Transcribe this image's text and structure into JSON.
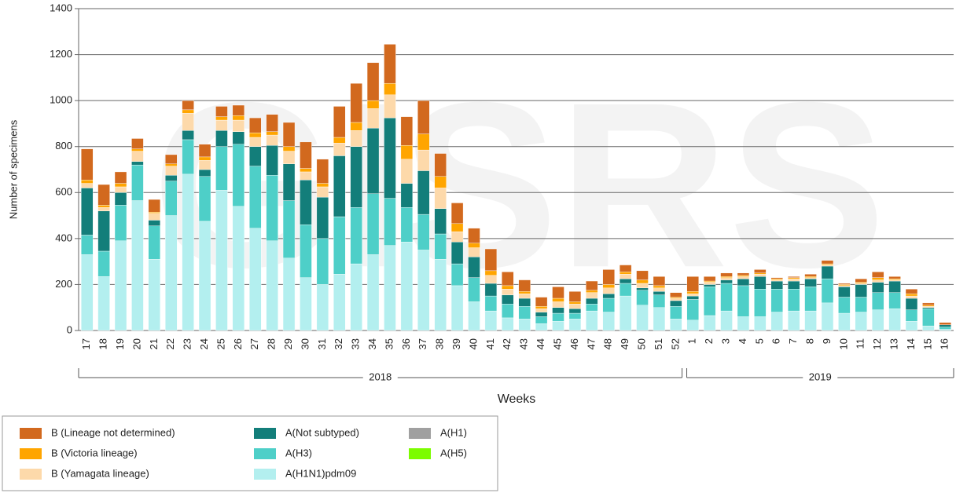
{
  "chart_data": {
    "type": "stacked_bar",
    "watermark": "GISRS",
    "y_axis_title": "Number of specimens",
    "x_axis_title": "Weeks",
    "x_group_labels": [
      "2018",
      "2019"
    ],
    "categories": [
      "17",
      "18",
      "19",
      "20",
      "21",
      "22",
      "23",
      "24",
      "25",
      "26",
      "27",
      "28",
      "29",
      "30",
      "31",
      "32",
      "33",
      "34",
      "35",
      "36",
      "37",
      "38",
      "39",
      "40",
      "41",
      "42",
      "43",
      "44",
      "45",
      "46",
      "47",
      "48",
      "49",
      "50",
      "51",
      "52",
      "1",
      "2",
      "3",
      "4",
      "5",
      "6",
      "7",
      "8",
      "9",
      "10",
      "11",
      "12",
      "13",
      "14",
      "15",
      "16"
    ],
    "ylim": [
      0,
      1400
    ],
    "yticks": [
      0,
      200,
      400,
      600,
      800,
      1000,
      1200,
      1400
    ],
    "grid": true,
    "series": [
      {
        "name": "A(H1N1)pdm09",
        "color": "#b3efef",
        "values": [
          330,
          235,
          390,
          565,
          310,
          500,
          680,
          475,
          610,
          540,
          445,
          390,
          315,
          230,
          200,
          245,
          290,
          330,
          370,
          385,
          350,
          310,
          195,
          125,
          85,
          55,
          50,
          30,
          40,
          50,
          85,
          80,
          150,
          110,
          100,
          50,
          45,
          65,
          85,
          60,
          60,
          80,
          85,
          85,
          120,
          75,
          80,
          90,
          95,
          40,
          20,
          5
        ]
      },
      {
        "name": "A(H3)",
        "color": "#4ecfc8",
        "values": [
          85,
          110,
          155,
          155,
          145,
          150,
          150,
          195,
          190,
          270,
          270,
          285,
          250,
          230,
          200,
          250,
          245,
          265,
          205,
          150,
          155,
          110,
          95,
          105,
          65,
          60,
          55,
          30,
          35,
          25,
          30,
          60,
          55,
          65,
          55,
          55,
          90,
          125,
          120,
          135,
          120,
          100,
          95,
          105,
          105,
          70,
          65,
          75,
          70,
          50,
          75,
          10
        ]
      },
      {
        "name": "A(Not subtyped)",
        "color": "#137e7a",
        "values": [
          205,
          175,
          55,
          15,
          25,
          25,
          40,
          30,
          70,
          55,
          85,
          130,
          160,
          195,
          180,
          265,
          265,
          285,
          350,
          105,
          190,
          110,
          95,
          90,
          55,
          40,
          35,
          20,
          25,
          20,
          25,
          20,
          20,
          10,
          15,
          25,
          15,
          10,
          15,
          30,
          55,
          35,
          35,
          35,
          55,
          45,
          55,
          45,
          50,
          50,
          5,
          10
        ]
      },
      {
        "name": "A(H1)",
        "color": "#a0a0a0",
        "values": [
          0,
          0,
          0,
          0,
          0,
          0,
          0,
          0,
          0,
          0,
          0,
          0,
          0,
          0,
          0,
          0,
          0,
          0,
          0,
          0,
          0,
          0,
          0,
          0,
          0,
          0,
          0,
          0,
          0,
          0,
          0,
          0,
          0,
          0,
          0,
          0,
          0,
          0,
          0,
          0,
          0,
          0,
          0,
          0,
          0,
          0,
          0,
          0,
          0,
          0,
          0,
          0
        ]
      },
      {
        "name": "A(H5)",
        "color": "#7cfc00",
        "values": [
          0,
          0,
          0,
          0,
          0,
          0,
          0,
          0,
          0,
          0,
          0,
          0,
          0,
          0,
          0,
          0,
          0,
          0,
          0,
          0,
          0,
          0,
          0,
          0,
          0,
          0,
          0,
          0,
          0,
          0,
          0,
          0,
          0,
          0,
          0,
          0,
          0,
          0,
          0,
          0,
          0,
          0,
          0,
          0,
          0,
          0,
          0,
          0,
          0,
          0,
          0,
          0
        ]
      },
      {
        "name": "B (Yamagata lineage)",
        "color": "#fdd9aa",
        "values": [
          20,
          15,
          25,
          45,
          30,
          40,
          75,
          40,
          45,
          50,
          40,
          45,
          55,
          35,
          45,
          55,
          70,
          85,
          100,
          105,
          90,
          90,
          45,
          40,
          35,
          25,
          20,
          15,
          25,
          20,
          25,
          25,
          20,
          20,
          15,
          10,
          10,
          10,
          10,
          10,
          10,
          5,
          10,
          5,
          5,
          5,
          5,
          10,
          5,
          10,
          5,
          0
        ]
      },
      {
        "name": "B (Victoria lineage)",
        "color": "#ffa500",
        "values": [
          15,
          10,
          15,
          10,
          5,
          10,
          15,
          15,
          15,
          20,
          20,
          15,
          20,
          15,
          15,
          25,
          35,
          35,
          50,
          60,
          70,
          50,
          35,
          20,
          20,
          15,
          10,
          10,
          15,
          10,
          10,
          15,
          10,
          15,
          10,
          5,
          10,
          5,
          5,
          5,
          5,
          5,
          5,
          5,
          5,
          5,
          5,
          10,
          5,
          10,
          5,
          0
        ]
      },
      {
        "name": "B (Lineage not determined)",
        "color": "#d2691e",
        "values": [
          135,
          90,
          50,
          45,
          55,
          40,
          40,
          55,
          45,
          45,
          65,
          75,
          105,
          115,
          105,
          135,
          170,
          165,
          170,
          125,
          145,
          100,
          90,
          65,
          95,
          60,
          50,
          40,
          50,
          45,
          40,
          65,
          30,
          40,
          40,
          20,
          65,
          20,
          15,
          10,
          15,
          5,
          5,
          10,
          15,
          5,
          15,
          25,
          10,
          20,
          10,
          10
        ]
      }
    ]
  }
}
